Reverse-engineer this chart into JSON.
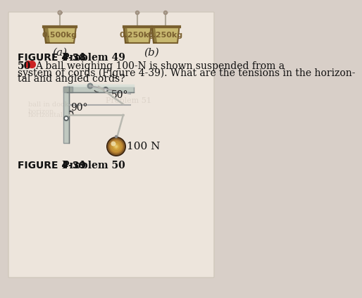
{
  "bg_color": "#d8cfc8",
  "page_color": "#e8e0d8",
  "fig438_title": "FIGURE 4-38  Problem 49",
  "fig439_title": "FIGURE 4-39  Problem 50",
  "problem50_number": "50",
  "problem50_dots": "●●",
  "problem50_text_line1": "A ball weighing 100-N is shown suspended from a",
  "problem50_text_line2": "system of cords (Figure 4-39). What are the tensions in the horizon-",
  "problem50_text_line3": "tal and angled cords?",
  "label_a": "(a)",
  "label_b": "(b)",
  "weight_label_left": "0.500kg",
  "weight_label_mid": "0.250kg",
  "weight_label_right": "0.250kg",
  "angle_50": "50°",
  "angle_90": "90°",
  "weight_100n": "100 N",
  "block_color_face": "#c8b870",
  "block_color_dark": "#7a6030",
  "bracket_color": "#b0b8b0",
  "bracket_dark": "#888888",
  "ball_color_outer": "#6a5020",
  "ball_color_inner": "#c8a040",
  "ball_highlight": "#e8d090",
  "cord_color": "#aaaaaa",
  "string_color": "#c0c0b8"
}
